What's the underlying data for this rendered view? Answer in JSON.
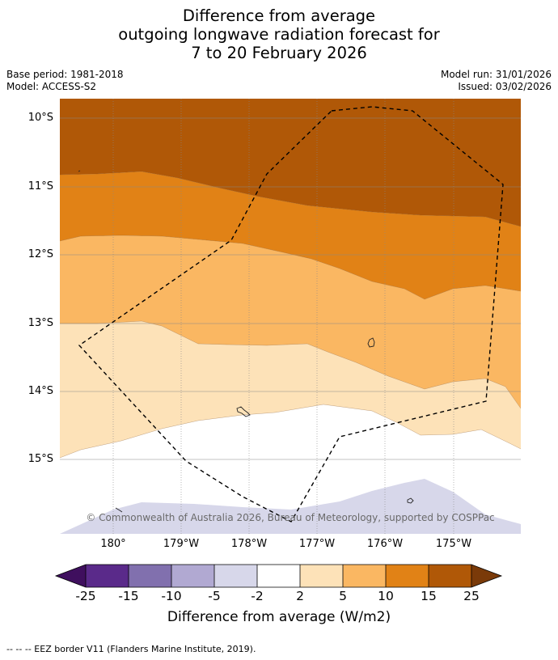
{
  "title": {
    "line1": "Difference from average",
    "line2": "outgoing longwave radiation forecast for",
    "line3": "7 to 20 February 2026"
  },
  "meta": {
    "base_period": "Base period: 1981-2018",
    "model": "Model: ACCESS-S2",
    "model_run": "Model run: 31/01/2026",
    "issued": "Issued: 03/02/2026"
  },
  "map": {
    "lat_labels": [
      "10°S",
      "11°S",
      "12°S",
      "13°S",
      "14°S",
      "15°S"
    ],
    "lon_labels": [
      "180°",
      "179°W",
      "178°W",
      "177°W",
      "176°W",
      "175°W"
    ],
    "copyright": "© Commonwealth of Australia 2026, Bureau of Meteorology, supported by COSPPac"
  },
  "colorbar": {
    "ticks": [
      "-25",
      "-15",
      "-10",
      "-5",
      "-2",
      "2",
      "5",
      "10",
      "15",
      "25"
    ],
    "colors": [
      "#3f0f5e",
      "#5a2a8a",
      "#8170ae",
      "#b1a9d2",
      "#d7d7ea",
      "#ffffff",
      "#fde2b8",
      "#fab762",
      "#e18216",
      "#b05807",
      "#7a3a09"
    ],
    "label": "Difference from average (W/m2)"
  },
  "footer": {
    "legend": "--  --  -- EEZ border V11 (Flanders Marine Institute, 2019)."
  }
}
